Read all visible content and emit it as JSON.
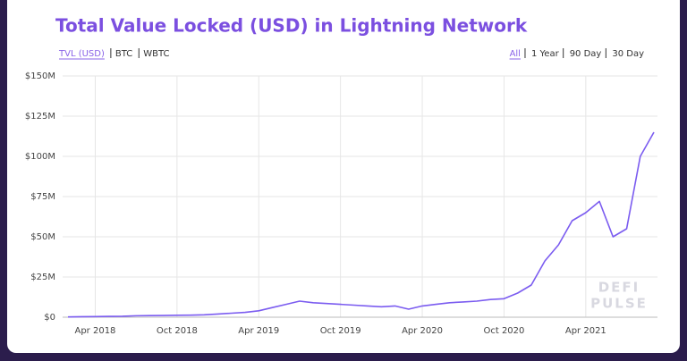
{
  "chart_data": {
    "type": "line",
    "title": "Total Value Locked (USD) in Lightning Network",
    "metric_tabs": [
      "TVL (USD)",
      "BTC",
      "WBTC"
    ],
    "range_tabs": [
      "All",
      "1 Year",
      "90 Day",
      "30 Day"
    ],
    "watermark": [
      "DEFI",
      "PULSE"
    ],
    "color": "#7b5cf0",
    "grid": true,
    "x": [
      "2018-02",
      "2018-03",
      "2018-04",
      "2018-05",
      "2018-06",
      "2018-07",
      "2018-08",
      "2018-09",
      "2018-10",
      "2018-11",
      "2018-12",
      "2019-01",
      "2019-02",
      "2019-03",
      "2019-04",
      "2019-05",
      "2019-06",
      "2019-07",
      "2019-08",
      "2019-09",
      "2019-10",
      "2019-11",
      "2019-12",
      "2020-01",
      "2020-02",
      "2020-03",
      "2020-04",
      "2020-05",
      "2020-06",
      "2020-07",
      "2020-08",
      "2020-09",
      "2020-10",
      "2020-11",
      "2020-12",
      "2021-01",
      "2021-02",
      "2021-03",
      "2021-04",
      "2021-05",
      "2021-06",
      "2021-07",
      "2021-08",
      "2021-09"
    ],
    "values": [
      200000,
      300000,
      400000,
      500000,
      600000,
      900000,
      1000000,
      1100000,
      1200000,
      1300000,
      1500000,
      2000000,
      2500000,
      3000000,
      4000000,
      6000000,
      8000000,
      10000000,
      9000000,
      8500000,
      8000000,
      7500000,
      7000000,
      6500000,
      7000000,
      5000000,
      7000000,
      8000000,
      9000000,
      9500000,
      10000000,
      11000000,
      11500000,
      15000000,
      20000000,
      35000000,
      45000000,
      60000000,
      65000000,
      72000000,
      50000000,
      55000000,
      100000000,
      115000000
    ],
    "xlim": [
      "2018-02",
      "2021-09"
    ],
    "xticks": [
      {
        "value": "2018-04",
        "label": "Apr 2018"
      },
      {
        "value": "2018-10",
        "label": "Oct 2018"
      },
      {
        "value": "2019-04",
        "label": "Apr 2019"
      },
      {
        "value": "2019-10",
        "label": "Oct 2019"
      },
      {
        "value": "2020-04",
        "label": "Apr 2020"
      },
      {
        "value": "2020-10",
        "label": "Oct 2020"
      },
      {
        "value": "2021-04",
        "label": "Apr 2021"
      }
    ],
    "ylim": [
      0,
      150000000
    ],
    "yticks": [
      {
        "value": 0,
        "label": "$0"
      },
      {
        "value": 25000000,
        "label": "$25M"
      },
      {
        "value": 50000000,
        "label": "$50M"
      },
      {
        "value": 75000000,
        "label": "$75M"
      },
      {
        "value": 100000000,
        "label": "$100M"
      },
      {
        "value": 125000000,
        "label": "$125M"
      },
      {
        "value": 150000000,
        "label": "$150M"
      }
    ]
  }
}
